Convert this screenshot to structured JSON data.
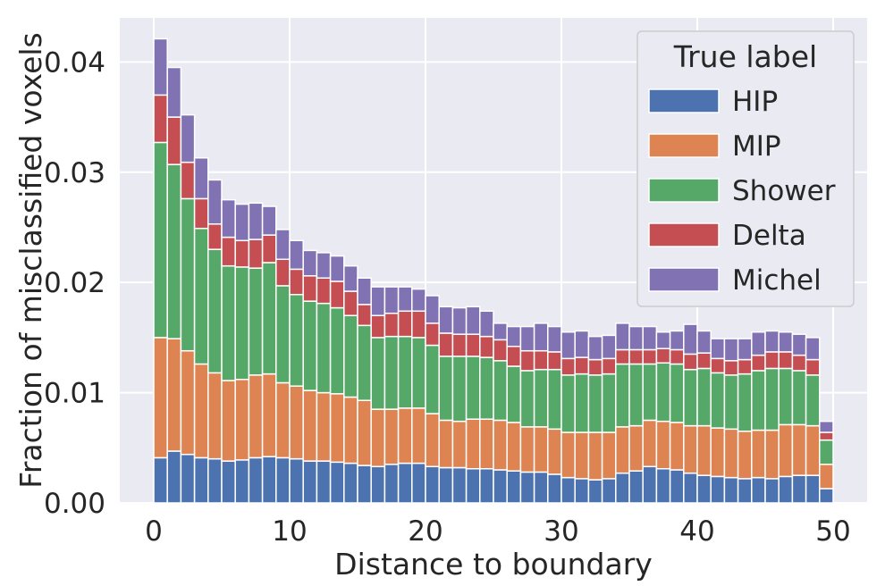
{
  "chart_data": {
    "type": "bar",
    "stacked": true,
    "xlabel": "Distance to boundary",
    "ylabel": "Fraction of misclassified voxels",
    "xlim": [
      -2.5,
      52.5
    ],
    "ylim": [
      0,
      0.044
    ],
    "x_ticks": [
      0,
      10,
      20,
      30,
      40,
      50
    ],
    "x_tick_labels": [
      "0",
      "10",
      "20",
      "30",
      "40",
      "50"
    ],
    "y_ticks": [
      0,
      0.01,
      0.02,
      0.03,
      0.04
    ],
    "y_tick_labels": [
      "0.00",
      "0.01",
      "0.02",
      "0.03",
      "0.04"
    ],
    "grid": true,
    "legend": {
      "title": "True label",
      "placement": "top-right"
    },
    "bin_width": 1,
    "x": [
      0,
      1,
      2,
      3,
      4,
      5,
      6,
      7,
      8,
      9,
      10,
      11,
      12,
      13,
      14,
      15,
      16,
      17,
      18,
      19,
      20,
      21,
      22,
      23,
      24,
      25,
      26,
      27,
      28,
      29,
      30,
      31,
      32,
      33,
      34,
      35,
      36,
      37,
      38,
      39,
      40,
      41,
      42,
      43,
      44,
      45,
      46,
      47,
      48,
      49
    ],
    "series": [
      {
        "name": "HIP",
        "color": "#4c72b0",
        "values": [
          0.0041,
          0.0047,
          0.0044,
          0.0041,
          0.004,
          0.0038,
          0.0039,
          0.0041,
          0.0042,
          0.0041,
          0.004,
          0.0038,
          0.0038,
          0.0037,
          0.0036,
          0.0034,
          0.0033,
          0.0035,
          0.0036,
          0.0036,
          0.0033,
          0.0032,
          0.0032,
          0.0031,
          0.0031,
          0.003,
          0.0029,
          0.0028,
          0.0028,
          0.0026,
          0.0023,
          0.0022,
          0.0021,
          0.0022,
          0.0027,
          0.0029,
          0.0033,
          0.0031,
          0.003,
          0.0027,
          0.0025,
          0.0024,
          0.0023,
          0.0022,
          0.0023,
          0.0022,
          0.0024,
          0.0025,
          0.0025,
          0.0013
        ]
      },
      {
        "name": "MIP",
        "color": "#dd8452",
        "values": [
          0.0109,
          0.0102,
          0.0094,
          0.0085,
          0.0078,
          0.0073,
          0.0073,
          0.0075,
          0.0075,
          0.0068,
          0.0066,
          0.0064,
          0.0062,
          0.0062,
          0.006,
          0.0059,
          0.0052,
          0.005,
          0.005,
          0.005,
          0.0048,
          0.0043,
          0.0042,
          0.0045,
          0.0045,
          0.0045,
          0.0044,
          0.0041,
          0.0041,
          0.0041,
          0.0041,
          0.0042,
          0.0043,
          0.0042,
          0.0042,
          0.0041,
          0.0042,
          0.0043,
          0.0043,
          0.0043,
          0.0045,
          0.0044,
          0.0044,
          0.0043,
          0.0043,
          0.0044,
          0.0047,
          0.0046,
          0.0045,
          0.0022
        ]
      },
      {
        "name": "Shower",
        "color": "#55a868",
        "values": [
          0.0177,
          0.0158,
          0.0138,
          0.0123,
          0.0112,
          0.0104,
          0.0102,
          0.0097,
          0.0101,
          0.0088,
          0.0083,
          0.0081,
          0.0081,
          0.0078,
          0.0074,
          0.0068,
          0.0065,
          0.0066,
          0.0065,
          0.0064,
          0.0062,
          0.0058,
          0.0059,
          0.0057,
          0.0056,
          0.0054,
          0.0051,
          0.0051,
          0.0052,
          0.0054,
          0.0052,
          0.0053,
          0.0052,
          0.0053,
          0.0057,
          0.0056,
          0.0051,
          0.0053,
          0.0053,
          0.0051,
          0.0052,
          0.005,
          0.0049,
          0.0052,
          0.0054,
          0.0056,
          0.0051,
          0.0049,
          0.0046,
          0.0022
        ]
      },
      {
        "name": "Delta",
        "color": "#c44e52",
        "values": [
          0.0043,
          0.0043,
          0.0033,
          0.0027,
          0.0023,
          0.0026,
          0.0024,
          0.0026,
          0.0025,
          0.0024,
          0.0023,
          0.0023,
          0.0023,
          0.0024,
          0.0022,
          0.0019,
          0.002,
          0.0021,
          0.0023,
          0.0024,
          0.002,
          0.0021,
          0.002,
          0.002,
          0.0019,
          0.0019,
          0.0018,
          0.0018,
          0.0017,
          0.0016,
          0.0015,
          0.0015,
          0.0014,
          0.0014,
          0.0013,
          0.0013,
          0.0013,
          0.0013,
          0.0013,
          0.0014,
          0.0014,
          0.0013,
          0.0013,
          0.0013,
          0.0014,
          0.0015,
          0.0015,
          0.0014,
          0.0014,
          0.0007
        ]
      },
      {
        "name": "Michel",
        "color": "#8172b3",
        "values": [
          0.0051,
          0.0045,
          0.0043,
          0.0037,
          0.004,
          0.0034,
          0.0033,
          0.0033,
          0.0026,
          0.0027,
          0.0026,
          0.0023,
          0.0023,
          0.0023,
          0.0023,
          0.0024,
          0.0026,
          0.0024,
          0.0022,
          0.002,
          0.0025,
          0.0024,
          0.0024,
          0.0025,
          0.0023,
          0.0015,
          0.0018,
          0.0022,
          0.0025,
          0.0023,
          0.0024,
          0.0024,
          0.0021,
          0.0021,
          0.0024,
          0.0021,
          0.0021,
          0.0015,
          0.0017,
          0.0027,
          0.002,
          0.0018,
          0.002,
          0.0019,
          0.0021,
          0.0019,
          0.0018,
          0.0019,
          0.002,
          0.001
        ]
      }
    ]
  }
}
